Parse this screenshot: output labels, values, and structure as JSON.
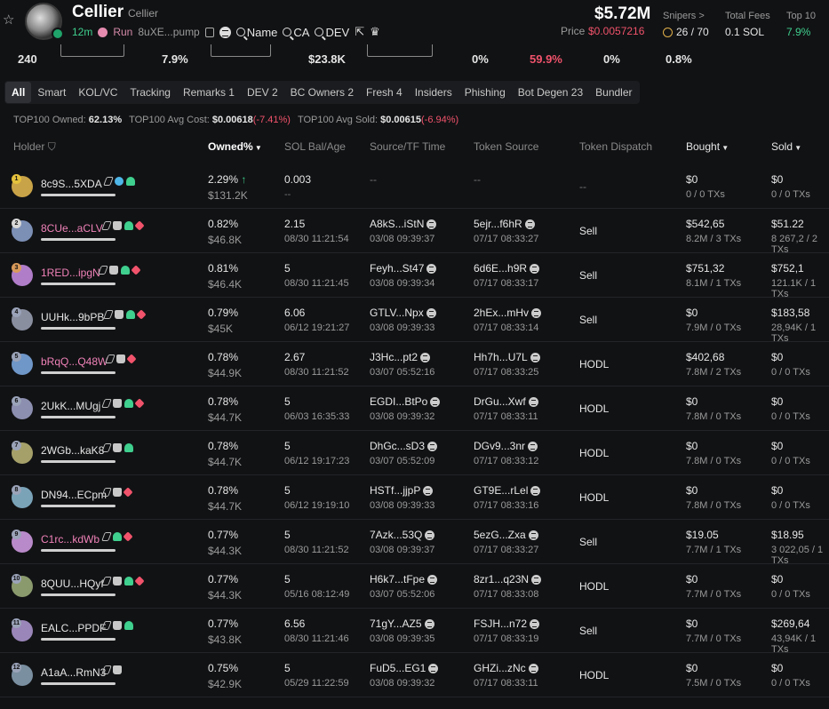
{
  "header": {
    "token_name": "Cellier",
    "token_sub": "Cellier",
    "age": "12m",
    "run": "Run",
    "address": "8uXE...pump",
    "search_name": "Name",
    "search_ca": "CA",
    "search_dev": "DEV",
    "market_cap": "$5.72M",
    "price_label": "Price",
    "price_value": "$0.0057216",
    "snipers_label": "Snipers >",
    "snipers_value": "26 / 70",
    "fees_label": "Total Fees",
    "fees_value": "0.1 SOL",
    "top10_label": "Top 10",
    "top10_value": "7.9%"
  },
  "stats": [
    "240",
    "7.9%",
    "$23.8K",
    "0%",
    "59.9%",
    "0%",
    "0.8%"
  ],
  "tabs": [
    "All",
    "Smart",
    "KOL/VC",
    "Tracking",
    "Remarks 1",
    "DEV 2",
    "BC Owners 2",
    "Fresh 4",
    "Insiders",
    "Phishing",
    "Bot Degen 23",
    "Bundler"
  ],
  "summary": {
    "owned_label": "TOP100 Owned:",
    "owned_value": "62.13%",
    "avg_cost_label": "TOP100 Avg Cost:",
    "avg_cost_value": "$0.00618",
    "avg_cost_change": "(-7.41%)",
    "avg_sold_label": "TOP100 Avg Sold:",
    "avg_sold_value": "$0.00615",
    "avg_sold_change": "(-6.94%)"
  },
  "columns": {
    "holder": "Holder",
    "owned": "Owned%",
    "sol": "SOL Bal/Age",
    "source": "Source/TF Time",
    "token_source": "Token Source",
    "dispatch": "Token Dispatch",
    "bought": "Bought",
    "sold": "Sold"
  },
  "rows": [
    {
      "rank": "1",
      "name": "8c9S...5XDA",
      "owned": "2.29%",
      "owned_usd": "$131.2K",
      "sol": "0.003",
      "age": "--",
      "src": "--",
      "src_time": "",
      "tsrc": "--",
      "tsrc_time": "",
      "dispatch": "--",
      "bought": "$0",
      "bought_tx": "0 / 0 TXs",
      "sold": "$0",
      "sold_tx": "0 / 0 TXs"
    },
    {
      "rank": "2",
      "name": "8CUe...aCLV",
      "owned": "0.82%",
      "owned_usd": "$46.8K",
      "sol": "2.15",
      "age": "08/30 11:21:54",
      "src": "A8kS...iStN",
      "src_time": "03/08 09:39:37",
      "tsrc": "5ejr...f6hR",
      "tsrc_time": "07/17 08:33:27",
      "dispatch": "Sell",
      "bought": "$542,65",
      "bought_tx": "8.2M / 3 TXs",
      "sold": "$51.22",
      "sold_tx": "8 267,2 / 2 TXs"
    },
    {
      "rank": "3",
      "name": "1RED...ipgN",
      "owned": "0.81%",
      "owned_usd": "$46.4K",
      "sol": "5",
      "age": "08/30 11:21:45",
      "src": "Feyh...St47",
      "src_time": "03/08 09:39:34",
      "tsrc": "6d6E...h9R",
      "tsrc_time": "07/17 08:33:17",
      "dispatch": "Sell",
      "bought": "$751,32",
      "bought_tx": "8.1M / 1 TXs",
      "sold": "$752,1",
      "sold_tx": "121.1K / 1 TXs"
    },
    {
      "rank": "4",
      "name": "UUHk...9bPB",
      "owned": "0.79%",
      "owned_usd": "$45K",
      "sol": "6.06",
      "age": "06/12 19:21:27",
      "src": "GTLV...Npx",
      "src_time": "03/08 09:39:33",
      "tsrc": "2hEx...mHv",
      "tsrc_time": "07/17 08:33:14",
      "dispatch": "Sell",
      "bought": "$0",
      "bought_tx": "7.9M / 0 TXs",
      "sold": "$183,58",
      "sold_tx": "28,94K / 1 TXs"
    },
    {
      "rank": "5",
      "name": "bRqQ...Q48W",
      "owned": "0.78%",
      "owned_usd": "$44.9K",
      "sol": "2.67",
      "age": "08/30 11:21:52",
      "src": "J3Hc...pt2",
      "src_time": "03/07 05:52:16",
      "tsrc": "Hh7h...U7L",
      "tsrc_time": "07/17 08:33:25",
      "dispatch": "HODL",
      "bought": "$402,68",
      "bought_tx": "7.8M / 2 TXs",
      "sold": "$0",
      "sold_tx": "0 / 0 TXs"
    },
    {
      "rank": "6",
      "name": "2UkK...MUgj",
      "owned": "0.78%",
      "owned_usd": "$44.7K",
      "sol": "5",
      "age": "06/03 16:35:33",
      "src": "EGDI...BtPo",
      "src_time": "03/08 09:39:32",
      "tsrc": "DrGu...Xwf",
      "tsrc_time": "07/17 08:33:11",
      "dispatch": "HODL",
      "bought": "$0",
      "bought_tx": "7.8M / 0 TXs",
      "sold": "$0",
      "sold_tx": "0 / 0 TXs"
    },
    {
      "rank": "7",
      "name": "2WGb...kaK8",
      "owned": "0.78%",
      "owned_usd": "$44.7K",
      "sol": "5",
      "age": "06/12 19:17:23",
      "src": "DhGc...sD3",
      "src_time": "03/07 05:52:09",
      "tsrc": "DGv9...3nr",
      "tsrc_time": "07/17 08:33:12",
      "dispatch": "HODL",
      "bought": "$0",
      "bought_tx": "7.8M / 0 TXs",
      "sold": "$0",
      "sold_tx": "0 / 0 TXs"
    },
    {
      "rank": "8",
      "name": "DN94...ECpm",
      "owned": "0.78%",
      "owned_usd": "$44.7K",
      "sol": "5",
      "age": "06/12 19:19:10",
      "src": "HSTf...jjpP",
      "src_time": "03/08 09:39:33",
      "tsrc": "GT9E...rLel",
      "tsrc_time": "07/17 08:33:16",
      "dispatch": "HODL",
      "bought": "$0",
      "bought_tx": "7.8M / 0 TXs",
      "sold": "$0",
      "sold_tx": "0 / 0 TXs"
    },
    {
      "rank": "9",
      "name": "C1rc...kdWb",
      "owned": "0.77%",
      "owned_usd": "$44.3K",
      "sol": "5",
      "age": "08/30 11:21:52",
      "src": "7Azk...53Q",
      "src_time": "03/08 09:39:37",
      "tsrc": "5ezG...Zxa",
      "tsrc_time": "07/17 08:33:27",
      "dispatch": "Sell",
      "bought": "$19.05",
      "bought_tx": "7.7M / 1 TXs",
      "sold": "$18.95",
      "sold_tx": "3 022,05 / 1 TXs"
    },
    {
      "rank": "10",
      "name": "8QUU...HQyf",
      "owned": "0.77%",
      "owned_usd": "$44.3K",
      "sol": "5",
      "age": "05/16 08:12:49",
      "src": "H6k7...tFpe",
      "src_time": "03/07 05:52:06",
      "tsrc": "8zr1...q23N",
      "tsrc_time": "07/17 08:33:08",
      "dispatch": "HODL",
      "bought": "$0",
      "bought_tx": "7.7M / 0 TXs",
      "sold": "$0",
      "sold_tx": "0 / 0 TXs"
    },
    {
      "rank": "11",
      "name": "EALC...PPDF",
      "owned": "0.77%",
      "owned_usd": "$43.8K",
      "sol": "6.56",
      "age": "08/30 11:21:46",
      "src": "71gY...AZ5",
      "src_time": "03/08 09:39:35",
      "tsrc": "FSJH...n72",
      "tsrc_time": "07/17 08:33:19",
      "dispatch": "Sell",
      "bought": "$0",
      "bought_tx": "7.7M / 0 TXs",
      "sold": "$269,64",
      "sold_tx": "43,94K / 1 TXs"
    },
    {
      "rank": "12",
      "name": "A1aA...RmN3",
      "owned": "0.75%",
      "owned_usd": "$42.9K",
      "sol": "5",
      "age": "05/29 11:22:59",
      "src": "FuD5...EG1",
      "src_time": "03/08 09:39:32",
      "tsrc": "GHZi...zNc",
      "tsrc_time": "07/17 08:33:11",
      "dispatch": "HODL",
      "bought": "$0",
      "bought_tx": "7.5M / 0 TXs",
      "sold": "$0",
      "sold_tx": "0 / 0 TXs"
    }
  ]
}
